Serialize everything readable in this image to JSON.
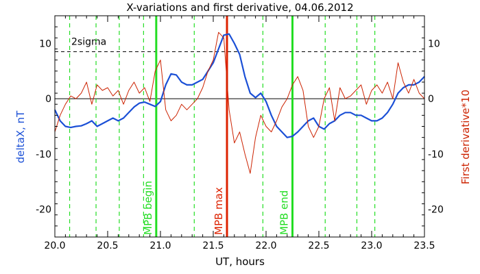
{
  "chart_data": {
    "type": "line",
    "title": "X-variations and first derivative, 04.06.2012",
    "xlabel": "UT, hours",
    "ylabel_left": "deltaX, nT",
    "ylabel_right": "First derivative*10",
    "xlim": [
      20.0,
      23.5
    ],
    "ylim": [
      -25,
      15
    ],
    "xticks": [
      20.0,
      20.5,
      21.0,
      21.5,
      22.0,
      22.5,
      23.0,
      23.5
    ],
    "xtick_labels": [
      "20.0",
      "20.5",
      "21.0",
      "21.5",
      "22.0",
      "22.5",
      "23.0",
      "23.5"
    ],
    "yticks": [
      10,
      0,
      -10,
      -20
    ],
    "ytick_labels": [
      "10",
      "0",
      "-10",
      "-20"
    ],
    "colors": {
      "deltaX": "#1a4fd6",
      "derivative": "#cc2200",
      "green": "#22dd22",
      "red_marker": "#dd2200",
      "text": "#000000"
    },
    "sigma_line": {
      "y": 8.5,
      "label": "2sigma"
    },
    "zero_line": 0,
    "dashed_lines": [
      20.14,
      20.39,
      20.61,
      20.84,
      21.32,
      21.97,
      22.56,
      22.86,
      23.03
    ],
    "markers": [
      {
        "x": 20.96,
        "label": "MPB begin",
        "color": "#22dd22"
      },
      {
        "x": 21.63,
        "label": "MPB max",
        "color": "#dd2200"
      },
      {
        "x": 22.25,
        "label": "MPB end",
        "color": "#22dd22"
      }
    ],
    "series": [
      {
        "name": "deltaX, nT",
        "x": [
          20.0,
          20.05,
          20.1,
          20.15,
          20.2,
          20.25,
          20.3,
          20.35,
          20.4,
          20.45,
          20.5,
          20.55,
          20.6,
          20.65,
          20.7,
          20.75,
          20.8,
          20.85,
          20.9,
          20.95,
          21.0,
          21.05,
          21.1,
          21.15,
          21.2,
          21.25,
          21.3,
          21.35,
          21.4,
          21.45,
          21.5,
          21.55,
          21.6,
          21.65,
          21.7,
          21.75,
          21.8,
          21.85,
          21.9,
          21.95,
          22.0,
          22.05,
          22.1,
          22.15,
          22.2,
          22.25,
          22.3,
          22.35,
          22.4,
          22.45,
          22.5,
          22.55,
          22.6,
          22.65,
          22.7,
          22.75,
          22.8,
          22.85,
          22.9,
          22.95,
          23.0,
          23.05,
          23.1,
          23.15,
          23.2,
          23.25,
          23.3,
          23.35,
          23.4,
          23.45,
          23.5
        ],
        "values": [
          -2.0,
          -4.0,
          -5.0,
          -5.2,
          -5.0,
          -4.9,
          -4.5,
          -4.0,
          -5.0,
          -4.5,
          -4.0,
          -3.5,
          -4.0,
          -3.5,
          -2.5,
          -1.5,
          -0.8,
          -0.6,
          -1.0,
          -1.4,
          -0.5,
          2.5,
          4.5,
          4.3,
          3.0,
          2.5,
          2.5,
          3.0,
          3.5,
          5.0,
          6.5,
          9.0,
          11.5,
          11.7,
          10.0,
          8.0,
          4.0,
          1.0,
          0.2,
          1.0,
          -0.5,
          -3.0,
          -5.0,
          -6.0,
          -7.0,
          -6.8,
          -6.0,
          -5.0,
          -4.0,
          -3.5,
          -5.0,
          -5.5,
          -4.5,
          -4.0,
          -3.0,
          -2.5,
          -2.5,
          -3.0,
          -3.0,
          -3.5,
          -4.0,
          -4.0,
          -3.5,
          -2.5,
          -1.0,
          1.0,
          2.0,
          2.5,
          2.5,
          3.0,
          4.0
        ]
      },
      {
        "name": "First derivative*10",
        "x": [
          20.0,
          20.05,
          20.1,
          20.15,
          20.2,
          20.25,
          20.3,
          20.35,
          20.4,
          20.45,
          20.5,
          20.55,
          20.6,
          20.65,
          20.7,
          20.75,
          20.8,
          20.85,
          20.9,
          20.95,
          21.0,
          21.05,
          21.1,
          21.15,
          21.2,
          21.25,
          21.3,
          21.35,
          21.4,
          21.45,
          21.5,
          21.55,
          21.6,
          21.65,
          21.7,
          21.75,
          21.8,
          21.85,
          21.9,
          21.95,
          22.0,
          22.05,
          22.1,
          22.15,
          22.2,
          22.25,
          22.3,
          22.35,
          22.4,
          22.45,
          22.5,
          22.55,
          22.6,
          22.65,
          22.7,
          22.75,
          22.8,
          22.85,
          22.9,
          22.95,
          23.0,
          23.05,
          23.1,
          23.15,
          23.2,
          23.25,
          23.3,
          23.35,
          23.4,
          23.45,
          23.5
        ],
        "values": [
          -6.0,
          -3.0,
          -1.0,
          0.5,
          0.0,
          1.0,
          3.0,
          -1.0,
          2.5,
          1.5,
          2.0,
          0.5,
          1.5,
          -1.0,
          1.5,
          3.0,
          1.0,
          2.0,
          -0.5,
          5.0,
          7.0,
          -2.0,
          -4.0,
          -3.0,
          -1.0,
          -2.0,
          -1.0,
          0.0,
          2.0,
          5.0,
          7.0,
          12.0,
          11.0,
          -2.0,
          -8.0,
          -6.0,
          -10.0,
          -13.5,
          -7.0,
          -3.0,
          -5.0,
          -6.0,
          -4.0,
          -1.5,
          0.0,
          2.5,
          4.0,
          1.5,
          -5.0,
          -7.0,
          -5.0,
          0.0,
          2.0,
          -4.0,
          2.0,
          0.0,
          0.5,
          1.5,
          2.5,
          -1.0,
          1.5,
          2.5,
          1.0,
          3.0,
          0.0,
          6.5,
          3.0,
          1.0,
          3.5,
          1.0,
          0.0
        ]
      }
    ]
  }
}
